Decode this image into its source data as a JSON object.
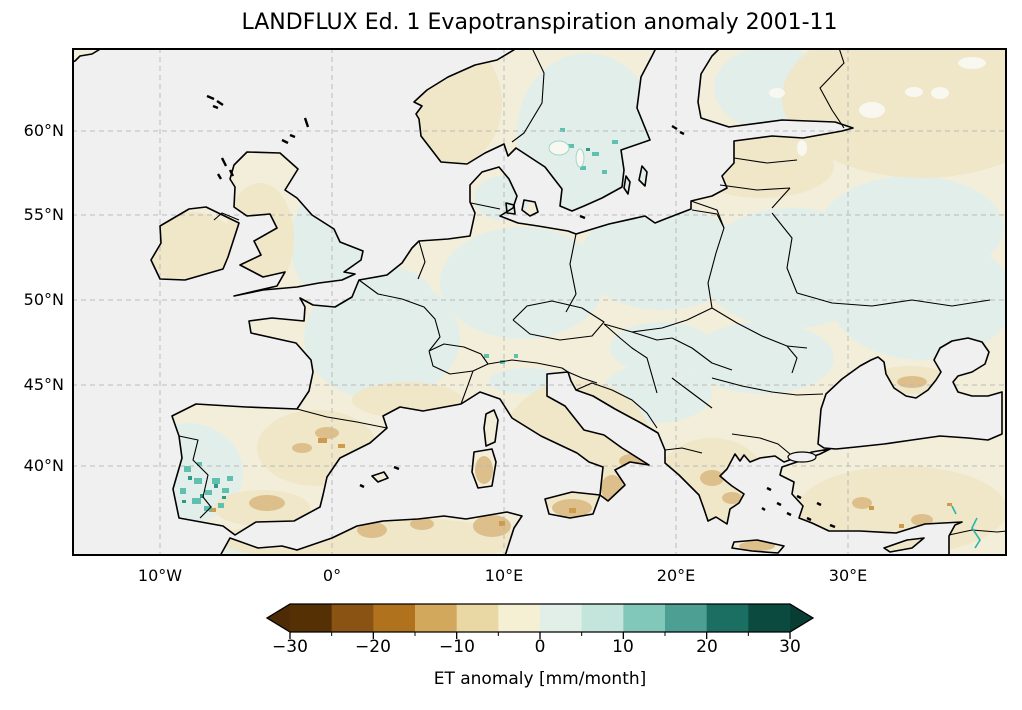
{
  "figure": {
    "title": "LANDFLUX Ed. 1 Evapotranspiration anomaly 2001-11"
  },
  "axes": {
    "lat_ticks": [
      "60°N",
      "55°N",
      "50°N",
      "45°N",
      "40°N"
    ],
    "lon_ticks": [
      "10°W",
      "0°",
      "10°E",
      "20°E",
      "30°E"
    ]
  },
  "colorbar": {
    "label": "ET anomaly [mm/month]",
    "tick_labels": [
      "−30",
      "−20",
      "−10",
      "0",
      "10",
      "20",
      "30"
    ],
    "boundaries": [
      -30,
      -25,
      -20,
      -15,
      -10,
      -5,
      0,
      5,
      10,
      15,
      20,
      25,
      30
    ],
    "major_ticks": [
      -30,
      -20,
      -10,
      0,
      10,
      20,
      30
    ],
    "extend": "both",
    "below_color": "#4d2b07",
    "segment_colors": [
      "#553005",
      "#8a5213",
      "#b0721d",
      "#d2a85c",
      "#e9d8a4",
      "#f5efd3",
      "#e2efe9",
      "#c3e5dc",
      "#82c8ba",
      "#4d9e93",
      "#1b6f62",
      "#0b4a3e"
    ],
    "above_color": "#083d33"
  },
  "palette": {
    "ocean_no_data": "#f0f0f0",
    "land_base": "#f3eeda",
    "positive_tint": "#e2eeea",
    "negative_tint": "#f1e7c8",
    "strong_negative_spot": "#cd9a4e",
    "strong_positive_spot": "#2d9a88",
    "coastline": "#000000",
    "gridline": "#bbbbbb"
  },
  "chart_data": {
    "type": "heatmap",
    "title": "LANDFLUX Ed. 1 Evapotranspiration anomaly 2001-11",
    "dataset": "LANDFLUX Ed. 1",
    "variable": "Evapotranspiration anomaly",
    "units": "mm/month",
    "period": "2001-11",
    "projection": "plate carree (lon/lat)",
    "map_extent": {
      "lon_min": -15,
      "lon_max": 39,
      "lat_min": 34.7,
      "lat_max": 64.7
    },
    "lat_gridlines_deg": [
      40,
      45,
      50,
      55,
      60
    ],
    "lon_gridlines_deg": [
      -10,
      0,
      10,
      20,
      30
    ],
    "colorbar": {
      "min": -30,
      "max": 30,
      "interval": 5,
      "major_ticks": [
        -30,
        -20,
        -10,
        0,
        10,
        20,
        30
      ],
      "extend": "both",
      "colormap": "brown-white-teal diverging (BrBG-like)"
    },
    "field_summary": {
      "overall": "Weak anomalies (|ET anomaly| < 10 mm/month) over most of Europe",
      "positive_regions": [
        "southwestern Iberia (Portugal and SW Spain, up to ~+15)",
        "central-southern Sweden around the large lakes",
        "northern and central France (weak)",
        "central and eastern Europe, Ukraine (weak)",
        "Po valley and Alpine foreland (weak)",
        "patches of central Anatolia (weak)"
      ],
      "negative_regions": [
        "coastal Norway",
        "Ireland and western Britain",
        "northeastern Spain / Ebro basin (spots to ~-20)",
        "Italy, Sicily, Sardinia, Corsica",
        "Greece, Aegean and Crete",
        "Turkey and the Levant",
        "North African coast (Morocco to Tunisia)",
        "Baltic states and northwest Russia (weak)"
      ],
      "no_data": "oceans and seas shown in light grey"
    }
  }
}
